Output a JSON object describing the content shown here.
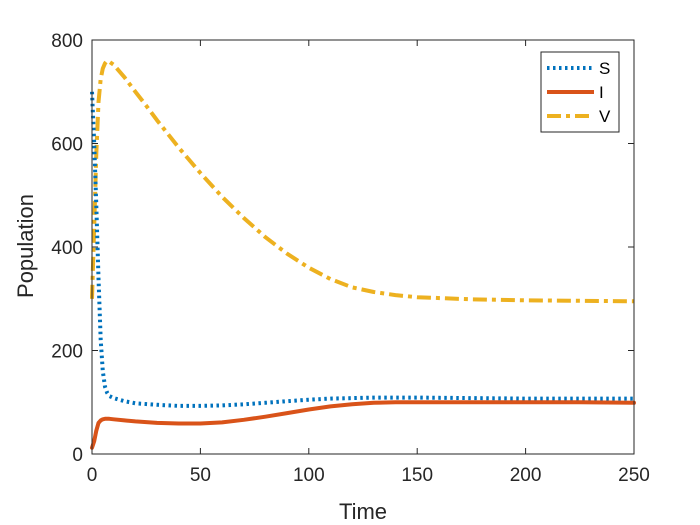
{
  "chart_data": {
    "type": "line",
    "title": "",
    "xlabel": "Time",
    "ylabel": "Population",
    "xlim": [
      0,
      250
    ],
    "ylim": [
      0,
      800
    ],
    "xticks": [
      0,
      50,
      100,
      150,
      200,
      250
    ],
    "yticks": [
      0,
      200,
      400,
      600,
      800
    ],
    "grid": false,
    "legend_position": "top-right",
    "series": [
      {
        "name": "S",
        "color": "#0072BD",
        "style": "dotted",
        "x": [
          0,
          1,
          2,
          3,
          4,
          5,
          6,
          7,
          8,
          10,
          15,
          20,
          30,
          40,
          50,
          60,
          70,
          80,
          90,
          100,
          110,
          120,
          130,
          140,
          150,
          175,
          200,
          225,
          250
        ],
        "y": [
          700,
          600,
          480,
          340,
          220,
          160,
          130,
          118,
          112,
          108,
          102,
          98,
          95,
          93,
          93,
          94,
          96,
          99,
          102,
          105,
          107,
          108,
          109,
          109,
          109,
          108,
          107,
          107,
          107
        ]
      },
      {
        "name": "I",
        "color": "#D95319",
        "style": "solid",
        "x": [
          0,
          1,
          2,
          3,
          4,
          5,
          6,
          8,
          10,
          15,
          20,
          30,
          40,
          50,
          60,
          70,
          80,
          90,
          100,
          110,
          120,
          130,
          140,
          150,
          175,
          200,
          225,
          250
        ],
        "y": [
          12,
          25,
          45,
          60,
          65,
          67,
          68,
          68,
          67,
          65,
          63,
          60,
          59,
          59,
          61,
          66,
          72,
          79,
          86,
          92,
          96,
          99,
          100,
          100,
          100,
          100,
          100,
          99
        ]
      },
      {
        "name": "V",
        "color": "#EDB120",
        "style": "dashdot",
        "x": [
          0,
          1,
          2,
          3,
          4,
          5,
          6,
          7,
          8,
          10,
          15,
          20,
          25,
          30,
          40,
          50,
          60,
          70,
          80,
          90,
          100,
          110,
          120,
          130,
          140,
          150,
          175,
          200,
          225,
          250
        ],
        "y": [
          300,
          440,
          580,
          680,
          725,
          745,
          755,
          760,
          758,
          752,
          728,
          700,
          673,
          645,
          592,
          543,
          497,
          456,
          419,
          387,
          360,
          338,
          322,
          313,
          307,
          303,
          299,
          297,
          296,
          295
        ]
      }
    ]
  }
}
